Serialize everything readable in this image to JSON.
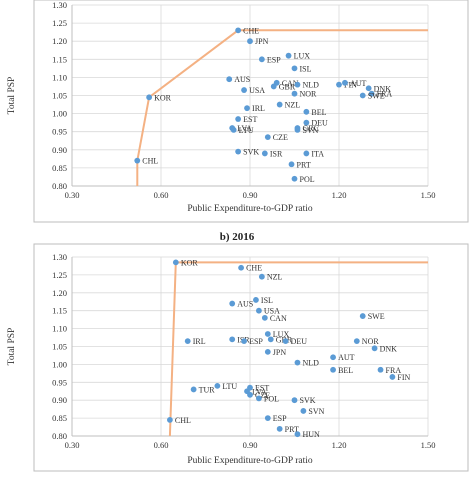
{
  "chart_data": [
    {
      "type": "scatter",
      "title": "",
      "xlabel": "Public Expenditure-to-GDP ratio",
      "ylabel": "Total PSP",
      "xlim": [
        0.3,
        1.5
      ],
      "ylim": [
        0.8,
        1.3
      ],
      "x_ticks": [
        "0.30",
        "0.60",
        "0.90",
        "1.20",
        "1.50"
      ],
      "y_ticks": [
        "0.80",
        "0.85",
        "0.90",
        "0.95",
        "1.00",
        "1.05",
        "1.10",
        "1.15",
        "1.20",
        "1.25",
        "1.30"
      ],
      "grid": true,
      "frontier": [
        [
          0.52,
          0.8
        ],
        [
          0.52,
          0.87
        ],
        [
          0.56,
          1.045
        ],
        [
          0.86,
          1.23
        ],
        [
          1.5,
          1.23
        ]
      ],
      "points": [
        {
          "label": "CHE",
          "x": 0.86,
          "y": 1.23
        },
        {
          "label": "JPN",
          "x": 0.9,
          "y": 1.2
        },
        {
          "label": "LUX",
          "x": 1.03,
          "y": 1.16
        },
        {
          "label": "ESP",
          "x": 0.94,
          "y": 1.15
        },
        {
          "label": "ISL",
          "x": 1.05,
          "y": 1.125
        },
        {
          "label": "AUS",
          "x": 0.83,
          "y": 1.095
        },
        {
          "label": "CAN",
          "x": 0.99,
          "y": 1.085
        },
        {
          "label": "GBR",
          "x": 0.98,
          "y": 1.075
        },
        {
          "label": "NLD",
          "x": 1.06,
          "y": 1.08
        },
        {
          "label": "FIN",
          "x": 1.2,
          "y": 1.08
        },
        {
          "label": "AUT",
          "x": 1.22,
          "y": 1.085
        },
        {
          "label": "DNK",
          "x": 1.3,
          "y": 1.07
        },
        {
          "label": "FRA",
          "x": 1.31,
          "y": 1.055
        },
        {
          "label": "SWE",
          "x": 1.28,
          "y": 1.05
        },
        {
          "label": "USA",
          "x": 0.88,
          "y": 1.065
        },
        {
          "label": "NOR",
          "x": 1.05,
          "y": 1.055
        },
        {
          "label": "KOR",
          "x": 0.56,
          "y": 1.045
        },
        {
          "label": "NZL",
          "x": 1.0,
          "y": 1.025
        },
        {
          "label": "IRL",
          "x": 0.89,
          "y": 1.015
        },
        {
          "label": "BEL",
          "x": 1.09,
          "y": 1.005
        },
        {
          "label": "EST",
          "x": 0.86,
          "y": 0.985
        },
        {
          "label": "DEU",
          "x": 1.09,
          "y": 0.975
        },
        {
          "label": "LVA",
          "x": 0.84,
          "y": 0.96
        },
        {
          "label": "LTU",
          "x": 0.845,
          "y": 0.955
        },
        {
          "label": "GRC",
          "x": 1.06,
          "y": 0.96
        },
        {
          "label": "SVN",
          "x": 1.06,
          "y": 0.955
        },
        {
          "label": "CZE",
          "x": 0.96,
          "y": 0.935
        },
        {
          "label": "SVK",
          "x": 0.86,
          "y": 0.895
        },
        {
          "label": "ISR",
          "x": 0.95,
          "y": 0.89
        },
        {
          "label": "ITA",
          "x": 1.09,
          "y": 0.89
        },
        {
          "label": "PRT",
          "x": 1.04,
          "y": 0.86
        },
        {
          "label": "CHL",
          "x": 0.52,
          "y": 0.87
        },
        {
          "label": "POL",
          "x": 1.05,
          "y": 0.82
        }
      ]
    },
    {
      "type": "scatter",
      "title": "b)   2016",
      "xlabel": "Public Expenditure-to-GDP ratio",
      "ylabel": "Total PSP",
      "xlim": [
        0.3,
        1.5
      ],
      "ylim": [
        0.8,
        1.3
      ],
      "x_ticks": [
        "0.30",
        "0.60",
        "0.90",
        "1.20",
        "1.50"
      ],
      "y_ticks": [
        "0.80",
        "0.85",
        "0.90",
        "0.95",
        "1.00",
        "1.05",
        "1.10",
        "1.15",
        "1.20",
        "1.25",
        "1.30"
      ],
      "grid": true,
      "frontier": [
        [
          0.63,
          0.8
        ],
        [
          0.65,
          1.285
        ],
        [
          1.5,
          1.285
        ]
      ],
      "points": [
        {
          "label": "KOR",
          "x": 0.65,
          "y": 1.285
        },
        {
          "label": "CHE",
          "x": 0.87,
          "y": 1.27
        },
        {
          "label": "NZL",
          "x": 0.94,
          "y": 1.245
        },
        {
          "label": "ISL",
          "x": 0.92,
          "y": 1.18
        },
        {
          "label": "AUS",
          "x": 0.84,
          "y": 1.17
        },
        {
          "label": "USA",
          "x": 0.93,
          "y": 1.15
        },
        {
          "label": "CAN",
          "x": 0.95,
          "y": 1.13
        },
        {
          "label": "SWE",
          "x": 1.28,
          "y": 1.135
        },
        {
          "label": "LUX",
          "x": 0.96,
          "y": 1.085
        },
        {
          "label": "GBR",
          "x": 0.97,
          "y": 1.07
        },
        {
          "label": "DEU",
          "x": 1.02,
          "y": 1.065
        },
        {
          "label": "IRL",
          "x": 0.69,
          "y": 1.065
        },
        {
          "label": "ISR",
          "x": 0.84,
          "y": 1.07
        },
        {
          "label": "ESP",
          "x": 0.88,
          "y": 1.065
        },
        {
          "label": "NOR",
          "x": 1.26,
          "y": 1.065
        },
        {
          "label": "DNK",
          "x": 1.32,
          "y": 1.045
        },
        {
          "label": "JPN",
          "x": 0.96,
          "y": 1.035
        },
        {
          "label": "AUT",
          "x": 1.18,
          "y": 1.02
        },
        {
          "label": "NLD",
          "x": 1.06,
          "y": 1.005
        },
        {
          "label": "BEL",
          "x": 1.18,
          "y": 0.985
        },
        {
          "label": "FRA",
          "x": 1.34,
          "y": 0.985
        },
        {
          "label": "FIN",
          "x": 1.38,
          "y": 0.965
        },
        {
          "label": "LTU",
          "x": 0.79,
          "y": 0.94
        },
        {
          "label": "TUR",
          "x": 0.71,
          "y": 0.93
        },
        {
          "label": "EST",
          "x": 0.9,
          "y": 0.935
        },
        {
          "label": "LVA",
          "x": 0.89,
          "y": 0.925
        },
        {
          "label": "CZE",
          "x": 0.9,
          "y": 0.915
        },
        {
          "label": "POL",
          "x": 0.93,
          "y": 0.905
        },
        {
          "label": "SVK",
          "x": 1.05,
          "y": 0.9
        },
        {
          "label": "SVN",
          "x": 1.08,
          "y": 0.87
        },
        {
          "label": "ESP",
          "x": 0.96,
          "y": 0.85
        },
        {
          "label": "CHL",
          "x": 0.63,
          "y": 0.845
        },
        {
          "label": "PRT",
          "x": 1.0,
          "y": 0.82
        },
        {
          "label": "HUN",
          "x": 1.06,
          "y": 0.805
        }
      ]
    }
  ]
}
